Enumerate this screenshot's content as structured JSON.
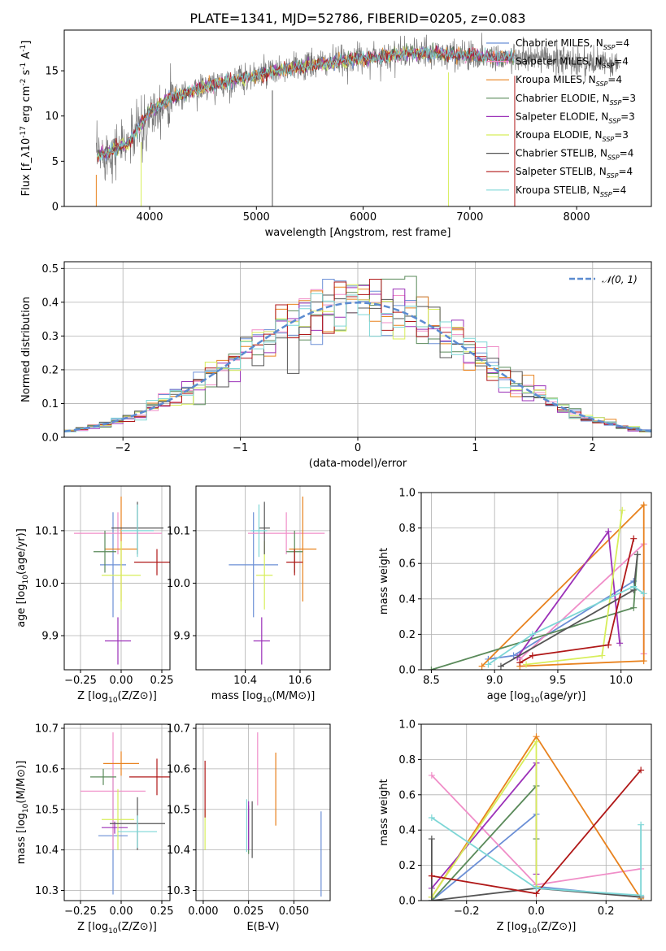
{
  "figure_title": "PLATE=1341, MJD=52786, FIBERID=0205, z=0.083",
  "colors": {
    "Chabrier MILES": "#6b8fd6",
    "Salpeter MILES": "#f08ec8",
    "Kroupa MILES": "#e8821e",
    "Chabrier ELODIE": "#5a8a5a",
    "Salpeter ELODIE": "#9b30b8",
    "Kroupa ELODIE": "#d7ee5a",
    "Chabrier STELIB": "#555555",
    "Salpeter STELIB": "#b01818",
    "Kroupa STELIB": "#7dd6d6",
    "normal_fit": "#5b8bd0"
  },
  "chart_data": [
    {
      "id": "spectrum",
      "type": "line",
      "xlabel": "wavelength [Angstrom, rest frame]",
      "ylabel": "Flux [f_λ10^-17 erg cm^-2 s^-1 A^-1]",
      "xlim": [
        3200,
        8700
      ],
      "ylim": [
        0,
        19.5
      ],
      "xticks": [
        4000,
        5000,
        6000,
        7000,
        8000
      ],
      "yticks": [
        0,
        5,
        10,
        15
      ],
      "legend_position": "right",
      "legend": [
        {
          "model": "Chabrier MILES",
          "n_ssp": "4"
        },
        {
          "model": "Salpeter MILES",
          "n_ssp": "4"
        },
        {
          "model": "Kroupa MILES",
          "n_ssp": "4"
        },
        {
          "model": "Chabrier ELODIE",
          "n_ssp": "3"
        },
        {
          "model": "Salpeter ELODIE",
          "n_ssp": "3"
        },
        {
          "model": "Kroupa ELODIE",
          "n_ssp": "3"
        },
        {
          "model": "Chabrier STELIB",
          "n_ssp": "4"
        },
        {
          "model": "Salpeter STELIB",
          "n_ssp": "4"
        },
        {
          "model": "Kroupa STELIB",
          "n_ssp": "4"
        }
      ],
      "continuum": [
        [
          3500,
          5.5
        ],
        [
          3800,
          7.0
        ],
        [
          4000,
          10.5
        ],
        [
          4200,
          12.0
        ],
        [
          4500,
          13.2
        ],
        [
          5000,
          14.5
        ],
        [
          5500,
          15.6
        ],
        [
          6000,
          16.4
        ],
        [
          6500,
          17.0
        ],
        [
          7000,
          16.7
        ],
        [
          7500,
          16.4
        ],
        [
          8000,
          16.0
        ],
        [
          8400,
          15.6
        ]
      ]
    },
    {
      "id": "residual-hist",
      "type": "line",
      "xlabel": "(data-model)/error",
      "ylabel": "Normed distribution",
      "xlim": [
        -2.5,
        2.5
      ],
      "ylim": [
        0,
        0.52
      ],
      "xticks": [
        -2,
        -1,
        0,
        1,
        2
      ],
      "yticks": [
        0.0,
        0.1,
        0.2,
        0.3,
        0.4,
        0.5
      ],
      "grid": true,
      "legend_position": "top-right",
      "legend": [
        "𝒩(0, 1)"
      ],
      "bins": [
        -2.5,
        2.5,
        50
      ]
    },
    {
      "id": "age-vs-z",
      "type": "scatter",
      "xlabel": "Z [log10(Z/Z⊙)]",
      "ylabel": "age  [log10(age/yr)]",
      "xlim": [
        -0.35,
        0.3
      ],
      "ylim": [
        9.835,
        10.185
      ],
      "xticks": [
        -0.25,
        0.0,
        0.25
      ],
      "yticks": [
        9.9,
        10.0,
        10.1
      ],
      "grid": true,
      "points": [
        {
          "model": "Chabrier MILES",
          "x": -0.05,
          "y": 10.035,
          "xerr": 0.08,
          "yerr": 0.1
        },
        {
          "model": "Salpeter MILES",
          "x": -0.02,
          "y": 10.095,
          "xerr": 0.27,
          "yerr": 0.04
        },
        {
          "model": "Kroupa MILES",
          "x": 0.0,
          "y": 10.065,
          "xerr": 0.1,
          "yerr": 0.1
        },
        {
          "model": "Chabrier ELODIE",
          "x": -0.1,
          "y": 10.06,
          "xerr": 0.07,
          "yerr": 0.04
        },
        {
          "model": "Salpeter ELODIE",
          "x": -0.02,
          "y": 9.89,
          "xerr": 0.08,
          "yerr": 0.045
        },
        {
          "model": "Kroupa ELODIE",
          "x": 0.0,
          "y": 10.015,
          "xerr": 0.12,
          "yerr": 0.065
        },
        {
          "model": "Chabrier STELIB",
          "x": 0.1,
          "y": 10.105,
          "xerr": 0.16,
          "yerr": 0.05
        },
        {
          "model": "Salpeter STELIB",
          "x": 0.22,
          "y": 10.04,
          "xerr": 0.14,
          "yerr": 0.025
        },
        {
          "model": "Kroupa STELIB",
          "x": 0.1,
          "y": 10.1,
          "xerr": 0.1,
          "yerr": 0.05
        }
      ]
    },
    {
      "id": "age-vs-mass",
      "type": "scatter",
      "xlabel": "mass [log10(M/M⊙)]",
      "ylabel": "",
      "xlim": [
        10.22,
        10.71
      ],
      "ylim": [
        9.835,
        10.185
      ],
      "xticks": [
        10.4,
        10.6
      ],
      "yticks": [
        9.9,
        10.0,
        10.1
      ],
      "grid": true,
      "points": [
        {
          "model": "Chabrier MILES",
          "x": 10.43,
          "y": 10.035,
          "xerr": 0.09,
          "yerr": 0.1
        },
        {
          "model": "Salpeter MILES",
          "x": 10.55,
          "y": 10.095,
          "xerr": 0.14,
          "yerr": 0.04
        },
        {
          "model": "Kroupa MILES",
          "x": 10.61,
          "y": 10.065,
          "xerr": 0.05,
          "yerr": 0.1
        },
        {
          "model": "Chabrier ELODIE",
          "x": 10.58,
          "y": 10.06,
          "xerr": 0.03,
          "yerr": 0.04
        },
        {
          "model": "Salpeter ELODIE",
          "x": 10.46,
          "y": 9.89,
          "xerr": 0.03,
          "yerr": 0.045
        },
        {
          "model": "Kroupa ELODIE",
          "x": 10.47,
          "y": 10.015,
          "xerr": 0.03,
          "yerr": 0.065
        },
        {
          "model": "Chabrier STELIB",
          "x": 10.47,
          "y": 10.105,
          "xerr": 0.02,
          "yerr": 0.05
        },
        {
          "model": "Salpeter STELIB",
          "x": 10.58,
          "y": 10.04,
          "xerr": 0.03,
          "yerr": 0.025
        },
        {
          "model": "Kroupa STELIB",
          "x": 10.45,
          "y": 10.1,
          "xerr": 0.03,
          "yerr": 0.05
        }
      ]
    },
    {
      "id": "mass-weight-vs-age",
      "type": "line",
      "xlabel": "age  [log10(age/yr)]",
      "ylabel": "mass weight",
      "xlim": [
        8.42,
        10.24
      ],
      "ylim": [
        0,
        1
      ],
      "xticks": [
        8.5,
        9.0,
        9.5,
        10.0
      ],
      "yticks": [
        0.0,
        0.2,
        0.4,
        0.6,
        0.8,
        1.0
      ],
      "grid": true,
      "series": [
        {
          "model": "Chabrier MILES",
          "x": [
            8.95,
            9.15,
            10.1
          ],
          "y": [
            0.06,
            0.08,
            0.5
          ]
        },
        {
          "model": "Salpeter MILES",
          "x": [
            9.2,
            10.18,
            10.18
          ],
          "y": [
            0.06,
            0.71,
            0.09
          ]
        },
        {
          "model": "Kroupa MILES",
          "x": [
            8.9,
            10.18,
            10.18,
            9.2
          ],
          "y": [
            0.02,
            0.93,
            0.05,
            0.02
          ]
        },
        {
          "model": "Chabrier ELODIE",
          "x": [
            8.5,
            10.1,
            10.13
          ],
          "y": [
            0.0,
            0.35,
            0.65
          ]
        },
        {
          "model": "Salpeter ELODIE",
          "x": [
            9.18,
            9.9,
            9.99
          ],
          "y": [
            0.07,
            0.78,
            0.15
          ]
        },
        {
          "model": "Kroupa ELODIE",
          "x": [
            9.25,
            9.85,
            10.01
          ],
          "y": [
            0.03,
            0.08,
            0.9
          ]
        },
        {
          "model": "Chabrier STELIB",
          "x": [
            9.05,
            10.1,
            10.13
          ],
          "y": [
            0.02,
            0.45,
            0.65
          ]
        },
        {
          "model": "Salpeter STELIB",
          "x": [
            9.2,
            9.3,
            9.9,
            10.1
          ],
          "y": [
            0.04,
            0.08,
            0.14,
            0.74
          ]
        },
        {
          "model": "Kroupa STELIB",
          "x": [
            8.95,
            9.3,
            10.1,
            10.18
          ],
          "y": [
            0.03,
            0.2,
            0.47,
            0.43
          ]
        }
      ]
    },
    {
      "id": "mass-vs-z",
      "type": "scatter",
      "xlabel": "Z [log10(Z/Z⊙)]",
      "ylabel": "mass [log10(M/M⊙)]",
      "xlim": [
        -0.35,
        0.3
      ],
      "ylim": [
        10.275,
        10.71
      ],
      "xticks": [
        -0.25,
        0.0,
        0.25
      ],
      "yticks": [
        10.3,
        10.4,
        10.5,
        10.6,
        10.7
      ],
      "grid": true,
      "points": [
        {
          "model": "Chabrier MILES",
          "x": -0.05,
          "y": 10.435,
          "xerr": 0.09,
          "yerr": 0.145
        },
        {
          "model": "Salpeter MILES",
          "x": -0.05,
          "y": 10.545,
          "xerr": 0.2,
          "yerr": 0.145
        },
        {
          "model": "Kroupa MILES",
          "x": 0.0,
          "y": 10.613,
          "xerr": 0.11,
          "yerr": 0.03
        },
        {
          "model": "Chabrier ELODIE",
          "x": -0.11,
          "y": 10.58,
          "xerr": 0.08,
          "yerr": 0.02
        },
        {
          "model": "Salpeter ELODIE",
          "x": -0.04,
          "y": 10.455,
          "xerr": 0.08,
          "yerr": 0.015
        },
        {
          "model": "Kroupa ELODIE",
          "x": -0.02,
          "y": 10.475,
          "xerr": 0.1,
          "yerr": 0.075
        },
        {
          "model": "Chabrier STELIB",
          "x": 0.1,
          "y": 10.465,
          "xerr": 0.17,
          "yerr": 0.065
        },
        {
          "model": "Salpeter STELIB",
          "x": 0.22,
          "y": 10.58,
          "xerr": 0.17,
          "yerr": 0.045
        },
        {
          "model": "Kroupa STELIB",
          "x": 0.1,
          "y": 10.445,
          "xerr": 0.12,
          "yerr": 0.04
        }
      ]
    },
    {
      "id": "mass-vs-ebv",
      "type": "scatter",
      "xlabel": "E(B-V)",
      "ylabel": "",
      "xlim": [
        -0.004,
        0.07
      ],
      "ylim": [
        10.275,
        10.71
      ],
      "xticks": [
        0.0,
        0.025,
        0.05
      ],
      "tick_labels": [
        "0.000",
        "0.025",
        "0.050"
      ],
      "yticks": [
        10.3,
        10.4,
        10.5,
        10.6,
        10.7
      ],
      "grid": true,
      "points": [
        {
          "model": "Chabrier MILES",
          "x": 0.065,
          "y": 10.39,
          "xerr": 0,
          "yerr": 0.105
        },
        {
          "model": "Salpeter MILES",
          "x": 0.03,
          "y": 10.6,
          "xerr": 0,
          "yerr": 0.09
        },
        {
          "model": "Kroupa MILES",
          "x": 0.04,
          "y": 10.55,
          "xerr": 0,
          "yerr": 0.09
        },
        {
          "model": "Chabrier ELODIE",
          "x": 0.025,
          "y": 10.45,
          "xerr": 0,
          "yerr": 0.06
        },
        {
          "model": "Salpeter ELODIE",
          "x": 0.025,
          "y": 10.46,
          "xerr": 0,
          "yerr": 0.06
        },
        {
          "model": "Kroupa ELODIE",
          "x": 0.001,
          "y": 10.45,
          "xerr": 0,
          "yerr": 0.05
        },
        {
          "model": "Chabrier STELIB",
          "x": 0.027,
          "y": 10.45,
          "xerr": 0,
          "yerr": 0.07
        },
        {
          "model": "Salpeter STELIB",
          "x": 0.001,
          "y": 10.55,
          "xerr": 0,
          "yerr": 0.07
        },
        {
          "model": "Kroupa STELIB",
          "x": 0.024,
          "y": 10.46,
          "xerr": 0,
          "yerr": 0.065
        }
      ]
    },
    {
      "id": "mass-weight-vs-z",
      "type": "line",
      "xlabel": "Z [log10(Z/Z⊙)]",
      "ylabel": "mass weight",
      "xlim": [
        -0.33,
        0.33
      ],
      "ylim": [
        0,
        1
      ],
      "xticks": [
        -0.2,
        0.0,
        0.2
      ],
      "yticks": [
        0.0,
        0.2,
        0.4,
        0.6,
        0.8,
        1.0
      ],
      "grid": true,
      "series": [
        {
          "model": "Chabrier MILES",
          "x": [
            -0.3,
            0.0,
            0.0,
            0.3
          ],
          "y": [
            0.0,
            0.49,
            0.08,
            0.02
          ]
        },
        {
          "model": "Salpeter MILES",
          "x": [
            -0.3,
            0.0,
            0.3
          ],
          "y": [
            0.71,
            0.09,
            0.18
          ]
        },
        {
          "model": "Kroupa MILES",
          "x": [
            -0.3,
            0.0,
            0.3,
            0.3
          ],
          "y": [
            0.02,
            0.93,
            0.01,
            0.02
          ]
        },
        {
          "model": "Chabrier ELODIE",
          "x": [
            -0.3,
            0.0,
            0.0
          ],
          "y": [
            0.0,
            0.65,
            0.35
          ]
        },
        {
          "model": "Salpeter ELODIE",
          "x": [
            -0.3,
            0.0,
            0.0
          ],
          "y": [
            0.07,
            0.78,
            0.15
          ]
        },
        {
          "model": "Kroupa ELODIE",
          "x": [
            -0.3,
            0.0,
            0.0
          ],
          "y": [
            0.02,
            0.9,
            0.08
          ]
        },
        {
          "model": "Chabrier STELIB",
          "x": [
            -0.3,
            -0.3,
            0.0,
            0.3
          ],
          "y": [
            0.35,
            0.0,
            0.07,
            0.02
          ]
        },
        {
          "model": "Salpeter STELIB",
          "x": [
            -0.3,
            0.0,
            0.3
          ],
          "y": [
            0.14,
            0.04,
            0.74
          ]
        },
        {
          "model": "Kroupa STELIB",
          "x": [
            -0.3,
            0.0,
            0.3,
            0.3
          ],
          "y": [
            0.47,
            0.07,
            0.03,
            0.43
          ]
        }
      ]
    }
  ]
}
